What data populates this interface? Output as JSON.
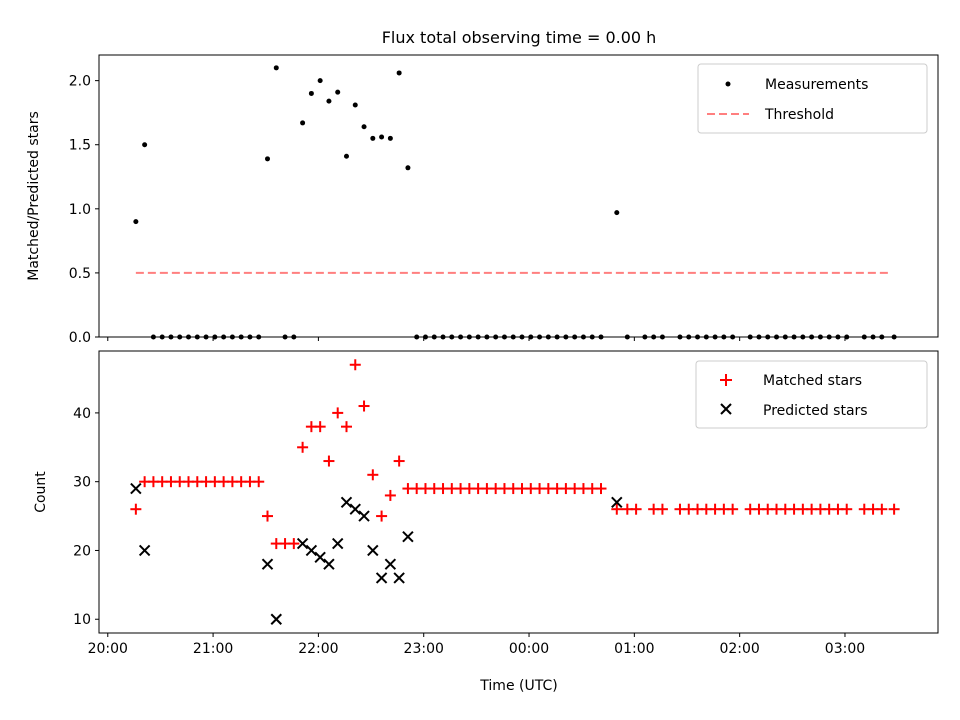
{
  "chart_data": [
    {
      "type": "scatter",
      "title": "Flux total observing time = 0.00 h",
      "xlabel": "",
      "ylabel": "Matched/Predicted stars",
      "xlim": [
        "19:55",
        "03:53"
      ],
      "ylim": [
        0,
        2.2
      ],
      "xticks": [
        "20:00",
        "21:00",
        "22:00",
        "23:00",
        "00:00",
        "01:00",
        "02:00",
        "03:00"
      ],
      "yticks": [
        "0.0",
        "0.5",
        "1.0",
        "1.5",
        "2.0"
      ],
      "legend": "top-right",
      "series": [
        {
          "name": "Measurements",
          "color": "#000000",
          "marker": "dot",
          "points": [
            [
              "20:16",
              0.9
            ],
            [
              "20:21",
              1.5
            ],
            [
              "20:26",
              0.0
            ],
            [
              "20:31",
              0.0
            ],
            [
              "20:36",
              0.0
            ],
            [
              "20:41",
              0.0
            ],
            [
              "20:46",
              0.0
            ],
            [
              "20:51",
              0.0
            ],
            [
              "20:56",
              0.0
            ],
            [
              "21:01",
              0.0
            ],
            [
              "21:06",
              0.0
            ],
            [
              "21:11",
              0.0
            ],
            [
              "21:16",
              0.0
            ],
            [
              "21:21",
              0.0
            ],
            [
              "21:26",
              0.0
            ],
            [
              "21:31",
              1.39
            ],
            [
              "21:36",
              2.1
            ],
            [
              "21:41",
              0.0
            ],
            [
              "21:46",
              0.0
            ],
            [
              "21:51",
              1.67
            ],
            [
              "21:56",
              1.9
            ],
            [
              "22:01",
              2.0
            ],
            [
              "22:06",
              1.84
            ],
            [
              "22:11",
              1.91
            ],
            [
              "22:16",
              1.41
            ],
            [
              "22:21",
              1.81
            ],
            [
              "22:26",
              1.64
            ],
            [
              "22:31",
              1.55
            ],
            [
              "22:36",
              1.56
            ],
            [
              "22:41",
              1.55
            ],
            [
              "22:46",
              2.06
            ],
            [
              "22:51",
              1.32
            ],
            [
              "22:56",
              0.0
            ],
            [
              "23:01",
              0.0
            ],
            [
              "23:06",
              0.0
            ],
            [
              "23:11",
              0.0
            ],
            [
              "23:16",
              0.0
            ],
            [
              "23:21",
              0.0
            ],
            [
              "23:26",
              0.0
            ],
            [
              "23:31",
              0.0
            ],
            [
              "23:36",
              0.0
            ],
            [
              "23:41",
              0.0
            ],
            [
              "23:46",
              0.0
            ],
            [
              "23:51",
              0.0
            ],
            [
              "23:56",
              0.0
            ],
            [
              "00:01",
              0.0
            ],
            [
              "00:06",
              0.0
            ],
            [
              "00:11",
              0.0
            ],
            [
              "00:16",
              0.0
            ],
            [
              "00:21",
              0.0
            ],
            [
              "00:26",
              0.0
            ],
            [
              "00:31",
              0.0
            ],
            [
              "00:36",
              0.0
            ],
            [
              "00:41",
              0.0
            ],
            [
              "00:50",
              0.97
            ],
            [
              "00:56",
              0.0
            ],
            [
              "01:06",
              0.0
            ],
            [
              "01:11",
              0.0
            ],
            [
              "01:16",
              0.0
            ],
            [
              "01:26",
              0.0
            ],
            [
              "01:31",
              0.0
            ],
            [
              "01:36",
              0.0
            ],
            [
              "01:41",
              0.0
            ],
            [
              "01:46",
              0.0
            ],
            [
              "01:51",
              0.0
            ],
            [
              "01:56",
              0.0
            ],
            [
              "02:06",
              0.0
            ],
            [
              "02:11",
              0.0
            ],
            [
              "02:16",
              0.0
            ],
            [
              "02:21",
              0.0
            ],
            [
              "02:26",
              0.0
            ],
            [
              "02:31",
              0.0
            ],
            [
              "02:36",
              0.0
            ],
            [
              "02:41",
              0.0
            ],
            [
              "02:46",
              0.0
            ],
            [
              "02:51",
              0.0
            ],
            [
              "02:56",
              0.0
            ],
            [
              "03:01",
              0.0
            ],
            [
              "03:11",
              0.0
            ],
            [
              "03:16",
              0.0
            ],
            [
              "03:21",
              0.0
            ],
            [
              "03:28",
              0.0
            ]
          ]
        },
        {
          "name": "Threshold",
          "color": "#ff7f7f",
          "marker": "dashed-line",
          "points": [
            [
              "20:16",
              0.5
            ],
            [
              "03:25",
              0.5
            ]
          ]
        }
      ]
    },
    {
      "type": "scatter",
      "title": "",
      "xlabel": "Time (UTC)",
      "ylabel": "Count",
      "xlim": [
        "19:55",
        "03:53"
      ],
      "ylim": [
        8,
        49
      ],
      "xticks": [
        "20:00",
        "21:00",
        "22:00",
        "23:00",
        "00:00",
        "01:00",
        "02:00",
        "03:00"
      ],
      "yticks": [
        "10",
        "20",
        "30",
        "40"
      ],
      "legend": "top-right",
      "series": [
        {
          "name": "Matched stars",
          "color": "#ff0000",
          "marker": "plus",
          "points": [
            [
              "20:16",
              26
            ],
            [
              "20:21",
              30
            ],
            [
              "20:26",
              30
            ],
            [
              "20:31",
              30
            ],
            [
              "20:36",
              30
            ],
            [
              "20:41",
              30
            ],
            [
              "20:46",
              30
            ],
            [
              "20:51",
              30
            ],
            [
              "20:56",
              30
            ],
            [
              "21:01",
              30
            ],
            [
              "21:06",
              30
            ],
            [
              "21:11",
              30
            ],
            [
              "21:16",
              30
            ],
            [
              "21:21",
              30
            ],
            [
              "21:26",
              30
            ],
            [
              "21:31",
              25
            ],
            [
              "21:36",
              21
            ],
            [
              "21:41",
              21
            ],
            [
              "21:46",
              21
            ],
            [
              "21:51",
              35
            ],
            [
              "21:56",
              38
            ],
            [
              "22:01",
              38
            ],
            [
              "22:06",
              33
            ],
            [
              "22:11",
              40
            ],
            [
              "22:16",
              38
            ],
            [
              "22:21",
              47
            ],
            [
              "22:26",
              41
            ],
            [
              "22:31",
              31
            ],
            [
              "22:36",
              25
            ],
            [
              "22:41",
              28
            ],
            [
              "22:46",
              33
            ],
            [
              "22:51",
              29
            ],
            [
              "22:56",
              29
            ],
            [
              "23:01",
              29
            ],
            [
              "23:06",
              29
            ],
            [
              "23:11",
              29
            ],
            [
              "23:16",
              29
            ],
            [
              "23:21",
              29
            ],
            [
              "23:26",
              29
            ],
            [
              "23:31",
              29
            ],
            [
              "23:36",
              29
            ],
            [
              "23:41",
              29
            ],
            [
              "23:46",
              29
            ],
            [
              "23:51",
              29
            ],
            [
              "23:56",
              29
            ],
            [
              "00:01",
              29
            ],
            [
              "00:06",
              29
            ],
            [
              "00:11",
              29
            ],
            [
              "00:16",
              29
            ],
            [
              "00:21",
              29
            ],
            [
              "00:26",
              29
            ],
            [
              "00:31",
              29
            ],
            [
              "00:36",
              29
            ],
            [
              "00:41",
              29
            ],
            [
              "00:50",
              26
            ],
            [
              "00:56",
              26
            ],
            [
              "01:01",
              26
            ],
            [
              "01:11",
              26
            ],
            [
              "01:16",
              26
            ],
            [
              "01:26",
              26
            ],
            [
              "01:31",
              26
            ],
            [
              "01:36",
              26
            ],
            [
              "01:41",
              26
            ],
            [
              "01:46",
              26
            ],
            [
              "01:51",
              26
            ],
            [
              "01:56",
              26
            ],
            [
              "02:06",
              26
            ],
            [
              "02:11",
              26
            ],
            [
              "02:16",
              26
            ],
            [
              "02:21",
              26
            ],
            [
              "02:26",
              26
            ],
            [
              "02:31",
              26
            ],
            [
              "02:36",
              26
            ],
            [
              "02:41",
              26
            ],
            [
              "02:46",
              26
            ],
            [
              "02:51",
              26
            ],
            [
              "02:56",
              26
            ],
            [
              "03:01",
              26
            ],
            [
              "03:11",
              26
            ],
            [
              "03:16",
              26
            ],
            [
              "03:21",
              26
            ],
            [
              "03:28",
              26
            ]
          ]
        },
        {
          "name": "Predicted stars",
          "color": "#000000",
          "marker": "x",
          "points": [
            [
              "20:16",
              29
            ],
            [
              "20:21",
              20
            ],
            [
              "21:31",
              18
            ],
            [
              "21:36",
              10
            ],
            [
              "21:51",
              21
            ],
            [
              "21:56",
              20
            ],
            [
              "22:01",
              19
            ],
            [
              "22:06",
              18
            ],
            [
              "22:11",
              21
            ],
            [
              "22:16",
              27
            ],
            [
              "22:21",
              26
            ],
            [
              "22:26",
              25
            ],
            [
              "22:31",
              20
            ],
            [
              "22:36",
              16
            ],
            [
              "22:41",
              18
            ],
            [
              "22:46",
              16
            ],
            [
              "22:51",
              22
            ],
            [
              "00:50",
              27
            ]
          ]
        }
      ]
    }
  ]
}
